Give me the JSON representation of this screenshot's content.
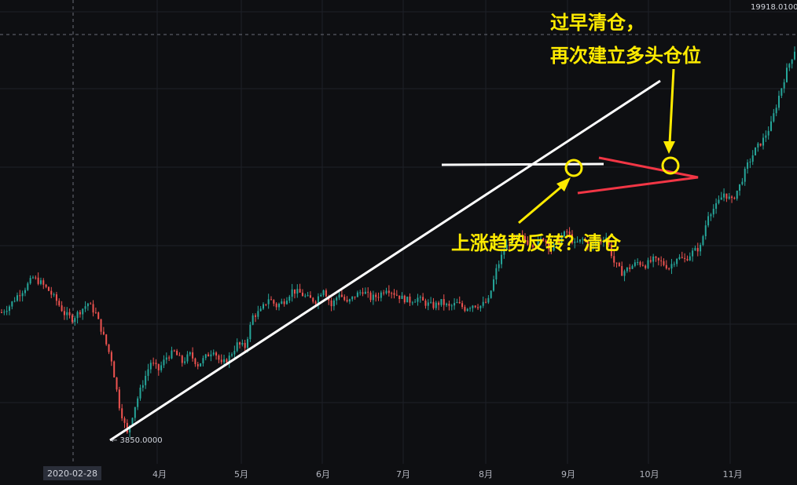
{
  "chart_data": {
    "type": "candlestick",
    "x_ticks": [
      "4月",
      "5月",
      "6月",
      "7月",
      "8月",
      "9月",
      "10月",
      "11月"
    ],
    "crosshair_date": "2020-02-28",
    "price_high_label": "19918.0100",
    "price_low_label": "← 3850.0000",
    "series": [
      {
        "x": [
          0,
          3,
          6,
          9,
          12,
          15,
          18,
          21,
          24,
          27,
          30,
          33,
          36,
          39,
          42,
          45,
          48,
          51,
          54,
          57,
          60,
          63,
          66,
          69,
          72,
          75,
          78,
          81,
          84,
          87,
          90,
          93,
          96,
          99,
          102,
          105,
          108,
          111,
          114,
          117,
          120,
          123,
          126,
          129,
          132,
          135,
          138,
          141,
          144,
          147,
          150,
          153,
          156,
          159,
          162,
          165,
          168,
          171,
          174,
          177,
          180,
          183,
          186,
          189,
          192,
          195,
          198,
          201,
          204,
          207,
          210,
          213,
          216,
          219,
          222,
          225,
          228,
          231,
          234,
          237,
          240,
          243,
          246,
          249,
          252,
          255,
          258,
          261,
          264,
          267,
          270,
          273,
          276,
          279,
          282,
          285,
          288,
          291,
          294,
          297,
          300,
          303,
          306
        ],
        "close": [
          8850,
          9100,
          9500,
          9800,
          10200,
          10000,
          9700,
          9300,
          8800,
          8600,
          8900,
          9200,
          8800,
          7900,
          7000,
          5200,
          4100,
          5200,
          6100,
          6900,
          6600,
          7100,
          7300,
          6900,
          7200,
          6800,
          7100,
          7400,
          6800,
          7100,
          7600,
          7500,
          8700,
          8900,
          9400,
          9100,
          9300,
          9700,
          9600,
          9400,
          9300,
          9800,
          9100,
          9600,
          9200,
          9500,
          9700,
          9400,
          9500,
          9800,
          9600,
          9400,
          9300,
          9400,
          9200,
          9100,
          9250,
          9050,
          9200,
          9000,
          9150,
          9100,
          9300,
          10500,
          11300,
          11700,
          11800,
          11600,
          11500,
          11750,
          11300,
          11700,
          12000,
          11500,
          11700,
          11400,
          11600,
          11800,
          10800,
          10400,
          10600,
          10800,
          10700,
          10900,
          10800,
          10600,
          11000,
          10900,
          11200,
          11400,
          12700,
          13000,
          13500,
          13200,
          13800,
          14600,
          15200,
          15600,
          16200,
          17300,
          18300,
          19100,
          19200
        ]
      }
    ],
    "ylim": [
      3850,
      19918.01
    ],
    "annotations": [
      {
        "text": "过早清仓，"
      },
      {
        "text": "再次建立多头仓位"
      },
      {
        "text": "上涨趋势反转？清仓"
      }
    ],
    "colors": {
      "up": "#26a69a",
      "down": "#ef5350",
      "trendline": "#ffffff",
      "triangle": "#f23645",
      "marker": "#ffeb00"
    },
    "grid": true
  }
}
